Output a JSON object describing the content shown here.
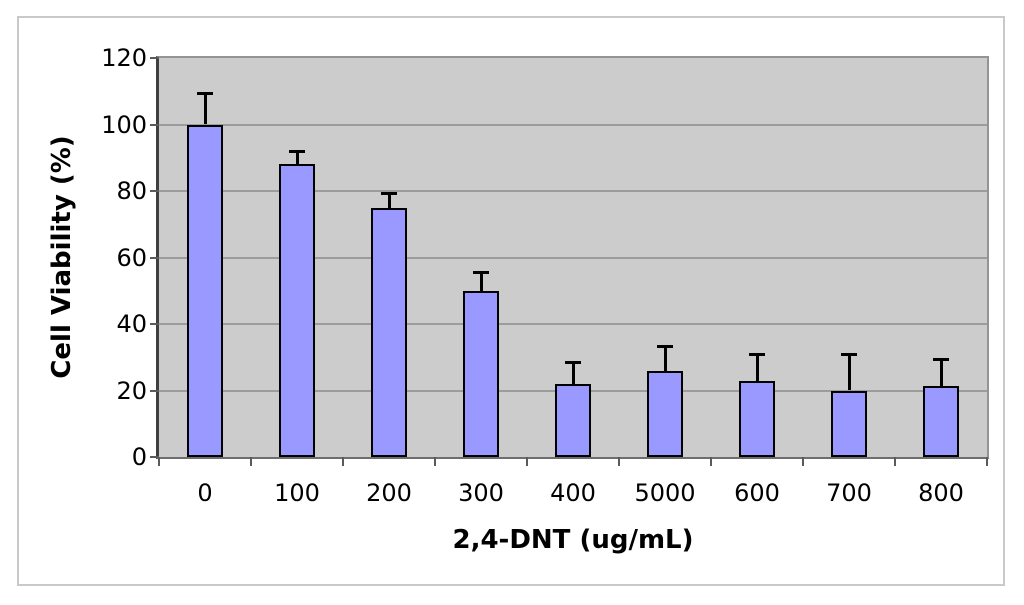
{
  "chart_data": {
    "type": "bar",
    "title": "",
    "xlabel": "2,4-DNT (ug/mL)",
    "ylabel": "Cell Viability (%)",
    "categories": [
      "0",
      "100",
      "200",
      "300",
      "400",
      "5000",
      "600",
      "700",
      "800"
    ],
    "values": [
      100,
      88,
      75,
      50,
      22,
      26,
      23,
      20,
      21.5
    ],
    "error_up": [
      9.5,
      4,
      4.5,
      5.5,
      6.5,
      7.5,
      8,
      11,
      8
    ],
    "yticks": [
      0,
      20,
      40,
      60,
      80,
      100,
      120
    ],
    "ylim": [
      0,
      120
    ],
    "grid": true,
    "legend_position": "none",
    "colors": {
      "bar_fill": "#9999FF",
      "bar_border": "#000000",
      "plot_bg": "#CCCCCC",
      "gridline": "#9c9c9c",
      "axis_tick": "#5a5a5a",
      "error_bar": "#000000",
      "frame_border": "#C9C9C9"
    }
  }
}
